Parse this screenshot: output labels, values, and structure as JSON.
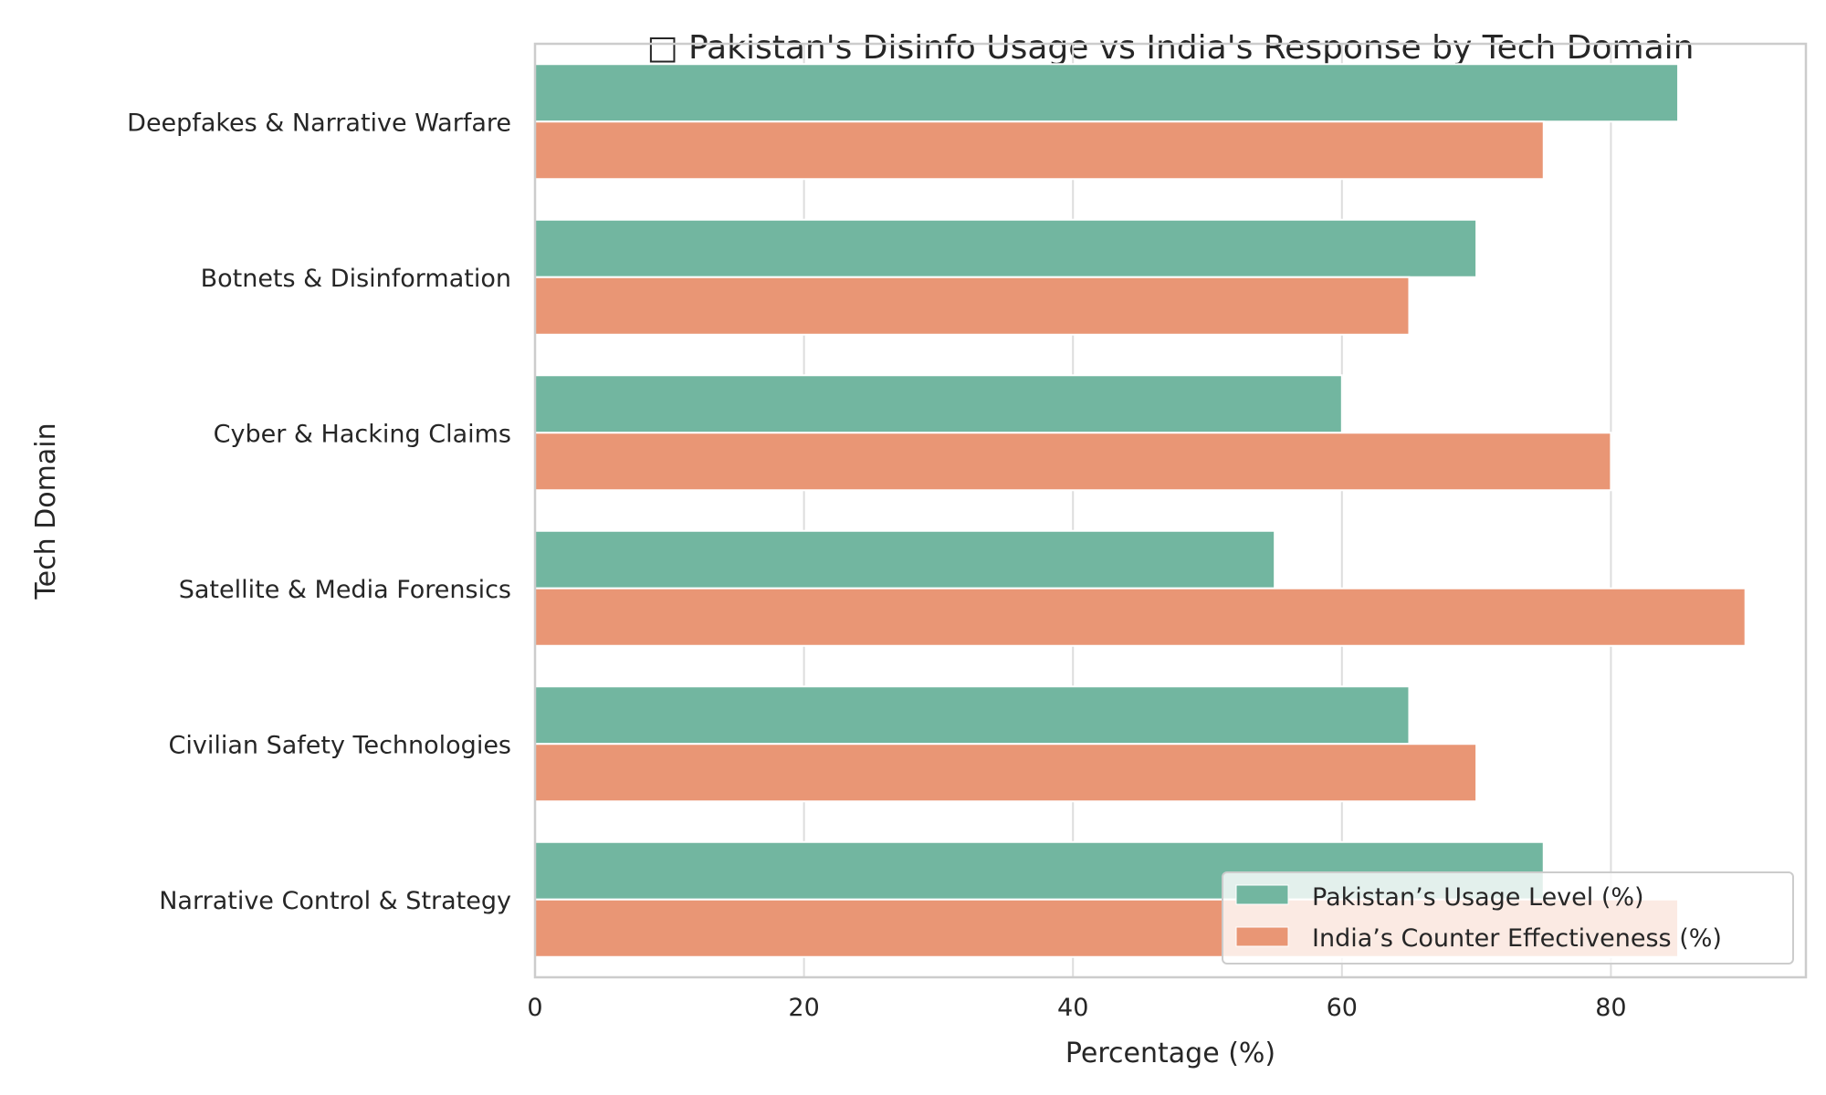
{
  "chart_data": {
    "type": "bar",
    "orientation": "horizontal",
    "title": "□ Pakistan's Disinfo Usage vs India's Response by Tech Domain",
    "xlabel": "Percentage (%)",
    "ylabel": "Tech Domain",
    "xlim": [
      0,
      94.5
    ],
    "xticks": [
      0,
      20,
      40,
      60,
      80
    ],
    "grid": true,
    "legend_position": "bottom-right",
    "categories": [
      "Deepfakes & Narrative Warfare",
      "Botnets & Disinformation",
      "Cyber & Hacking Claims",
      "Satellite & Media Forensics",
      "Civilian Safety Technologies",
      "Narrative Control & Strategy"
    ],
    "series": [
      {
        "name": "Pakistan’s Usage Level (%)",
        "color": "#72b6a0",
        "values": [
          85,
          70,
          60,
          55,
          65,
          75
        ]
      },
      {
        "name": "India’s Counter Effectiveness (%)",
        "color": "#e99675",
        "values": [
          75,
          65,
          80,
          90,
          70,
          85
        ]
      }
    ]
  }
}
